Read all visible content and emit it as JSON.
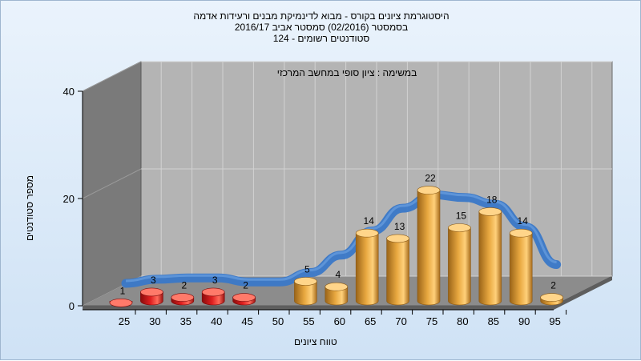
{
  "title": {
    "line1": "היסטוגרמת ציונים בקורס - מבוא לדינמיקת מבנים ורעידות אדמה",
    "line2": "בסמסטר  (02/2016)  סמסטר אביב 2016/17",
    "line3": "סטודנטים רשומים - 124"
  },
  "chart_data": {
    "type": "bar",
    "subtitle": "במשימה : ציון סופי במחשב המרכזי",
    "xlabel": "טווח ציונים",
    "ylabel": "מספר סטודנטים",
    "ylim": [
      0,
      40
    ],
    "y_ticks": [
      "0",
      "20",
      "40"
    ],
    "categories": [
      "25",
      "30",
      "35",
      "40",
      "45",
      "50",
      "55",
      "60",
      "65",
      "70",
      "75",
      "80",
      "85",
      "90",
      "95"
    ],
    "values": [
      1,
      3,
      2,
      3,
      2,
      0,
      5,
      4,
      14,
      13,
      22,
      15,
      18,
      14,
      2
    ],
    "fail_below": 55,
    "grid": true,
    "colors": {
      "fail_bar": "#e02020",
      "pass_bar": "#e8a840",
      "curve": "#3a78c8",
      "back_wall": "#b4b4b4",
      "side_wall": "#7a7a7a",
      "floor": "#8c8c8c"
    }
  }
}
